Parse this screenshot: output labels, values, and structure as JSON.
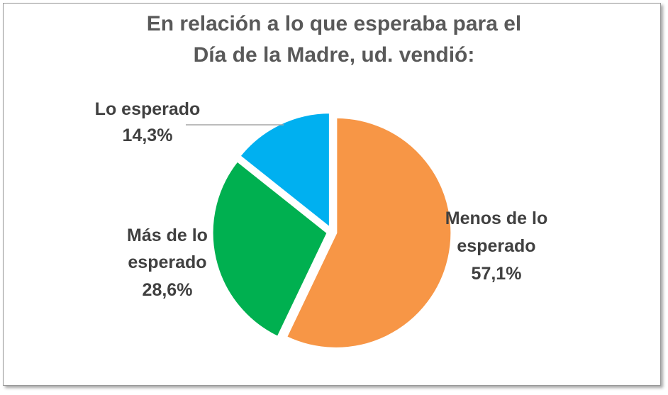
{
  "chart_data": {
    "type": "pie",
    "title_lines": [
      "En relación a lo que esperaba para el",
      "Día de la Madre, ud. vendió:"
    ],
    "slices": [
      {
        "label_lines": [
          "Menos de lo",
          "esperado"
        ],
        "value": 57.1,
        "value_label": "57,1%",
        "color": "#F79646"
      },
      {
        "label_lines": [
          "Más de lo",
          "esperado"
        ],
        "value": 28.6,
        "value_label": "28,6%",
        "color": "#00B050"
      },
      {
        "label_lines": [
          "Lo esperado"
        ],
        "value": 14.3,
        "value_label": "14,3%",
        "color": "#00B0F0"
      }
    ]
  }
}
